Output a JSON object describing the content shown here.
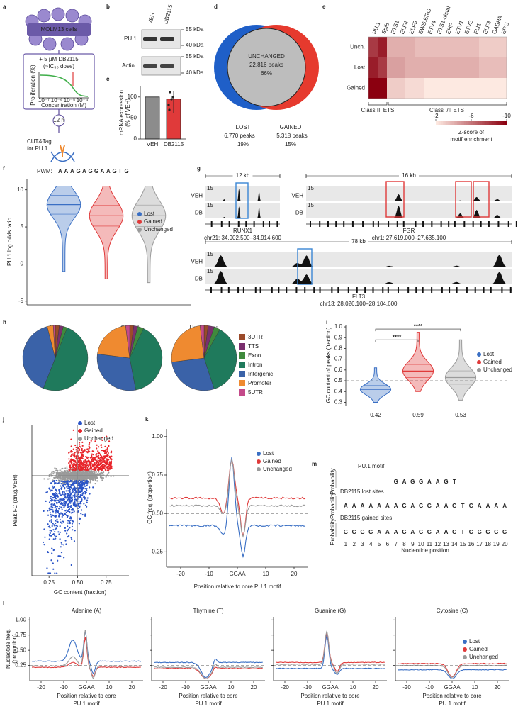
{
  "figure": {
    "a": {
      "letter": "a",
      "cells": "MOLM13 cells",
      "treatment": "+ 5 µM DB2115",
      "dose": "(~IC₅₀ dose)",
      "y_label": "Proliferation (%)",
      "x_label": "Concentration (M)",
      "x_ticks": [
        "10⁻⁷",
        "10⁻⁶",
        "10⁻⁵",
        "10⁻⁴"
      ],
      "time": "12 h",
      "assay": [
        "CUT&Tag",
        "for PU.1"
      ]
    },
    "b": {
      "letter": "b",
      "lanes": [
        "VEH",
        "DB2115"
      ],
      "rows": [
        "PU.1",
        "Actin"
      ],
      "markers": [
        "55 kDa",
        "40 kDa",
        "55 kDa",
        "40 kDa"
      ]
    },
    "c": {
      "letter": "c",
      "type": "bar",
      "y_label": [
        "mRNA expression",
        "(% of VEH)"
      ],
      "categories": [
        "VEH",
        "DB2115"
      ],
      "values": [
        100,
        95
      ],
      "colors": [
        "#8c8c8c",
        "#e03a3a"
      ],
      "ylim": [
        0,
        125
      ],
      "yticks": [
        0,
        50,
        100
      ]
    },
    "d": {
      "letter": "d",
      "center": [
        "UNCHANGED",
        "22,816 peaks",
        "66%"
      ],
      "lost": [
        "LOST",
        "6,770 peaks",
        "19%"
      ],
      "gained": [
        "GAINED",
        "5,318 peaks",
        "15%"
      ]
    },
    "e": {
      "letter": "e",
      "type": "heatmap",
      "columns": [
        "PU.1",
        "SpiB",
        "ETS1",
        "ELF4",
        "ELF5",
        "EWS:ERG",
        "ETV4",
        "ETS1-distal",
        "EHF",
        "ETV1",
        "ETV2",
        "FLI1",
        "ELF3",
        "GABPA",
        "ERG"
      ],
      "rows": [
        "Unch.",
        "Lost",
        "Gained"
      ],
      "values": [
        [
          -8,
          -9,
          -4,
          -4,
          -4,
          -3.5,
          -3.5,
          -3.5,
          -3.5,
          -3.5,
          -3.5,
          -3.5,
          -3,
          -3,
          -3
        ],
        [
          -9,
          -8,
          -4.5,
          -4.5,
          -4,
          -4,
          -4,
          -4,
          -4,
          -4,
          -4,
          -4,
          -3.5,
          -3.5,
          -3.5
        ],
        [
          -10,
          -10,
          -3,
          -3,
          -2.5,
          -2.5,
          -2,
          -2,
          -2,
          -2,
          -2,
          -2,
          -2,
          -2,
          -2
        ]
      ],
      "groups": [
        "Class III ETS",
        "Class I/II ETS"
      ],
      "clim": [
        -2,
        -10
      ],
      "cticks": [
        -2,
        -6,
        -10
      ],
      "colorbar_label": [
        "Z-score of",
        "motif enrichment"
      ]
    },
    "f": {
      "letter": "f",
      "type": "violin",
      "pwm_label": "PWM:",
      "pwm": "AAAGAGGAAGTG",
      "y_label": "PU.1 log odds ratio",
      "ylim": [
        -5.5,
        11.5
      ],
      "yticks": [
        -5,
        0,
        5,
        10
      ],
      "legend": [
        "Lost",
        "Gained",
        "Unchanged"
      ],
      "colors": [
        "#3a6fc4",
        "#e03a3a",
        "#9a9a9a"
      ],
      "medians": [
        8,
        6.5,
        6.5
      ]
    },
    "g": {
      "letter": "g",
      "regions": [
        {
          "scale": "12 kb",
          "gene": "RUNX1",
          "coords": "chr21: 34,902,500–34,914,600"
        },
        {
          "scale": "16 kb",
          "gene": "FGR",
          "coords": "chr1: 27,619,000–27,635,100"
        },
        {
          "scale": "78 kb",
          "gene": "FLT3",
          "coords": "chr13: 28,026,100–28,104,600"
        }
      ],
      "tracks": [
        "VEH",
        "DB"
      ],
      "track_max": "15"
    },
    "h": {
      "letter": "h",
      "type": "pie",
      "titles": [
        "Lost",
        "Gained",
        "Unchanged"
      ],
      "legend": [
        "3UTR",
        "TTS",
        "Exon",
        "Intron",
        "Intergenic",
        "Promoter",
        "5UTR"
      ],
      "colors": [
        "#9b4a2a",
        "#7a2f6e",
        "#3f8a3c",
        "#1f7a5c",
        "#3a62a8",
        "#ef8a30",
        "#c44a8a"
      ],
      "pies": [
        {
          "values": [
            2,
            2,
            2,
            50,
            40,
            3,
            1
          ]
        },
        {
          "values": [
            2,
            2,
            3,
            40,
            30,
            21,
            2
          ]
        },
        {
          "values": [
            2,
            3,
            3,
            37,
            28,
            25,
            2
          ]
        }
      ]
    },
    "i": {
      "letter": "i",
      "type": "violin",
      "y_label": "GC content of peaks (fraction)",
      "ylim": [
        0.27,
        1.02
      ],
      "yticks": [
        0.3,
        0.4,
        0.5,
        0.6,
        0.7,
        0.8,
        0.9,
        {
          "value": 1,
          "label": "1.0"
        }
      ],
      "medians": [
        0.42,
        0.59,
        0.53
      ],
      "value_labels": [
        "0.42",
        "0.59",
        "0.53"
      ],
      "significance": [
        "****",
        "****"
      ],
      "legend": [
        "Lost",
        "Gained",
        "Unchanged"
      ],
      "colors": [
        "#3a6fc4",
        "#e03a3a",
        "#9a9a9a"
      ]
    },
    "j": {
      "letter": "j",
      "type": "scatter",
      "y_label": "Peak FC (drug/VEH)",
      "x_label": "GC content (fraction)",
      "xlim": [
        0.1,
        0.95
      ],
      "xticks": [
        0.25,
        {
          "value": 0.5,
          "label": "0.50"
        },
        0.75
      ],
      "legend": [
        "Lost",
        "Gained",
        "Unchanged"
      ],
      "colors": [
        "#2b55c8",
        "#e8242a",
        "#9a9a9a"
      ]
    },
    "k": {
      "letter": "k",
      "type": "line",
      "y_label": "GC freq. (proportion)",
      "x_label": "Position relative to core PU.1 motif",
      "xlim": [
        -25,
        25
      ],
      "xticks": [
        -20,
        -10,
        {
          "value": 0,
          "label": "GGAA"
        },
        10,
        20
      ],
      "ylim": [
        0.15,
        1.05
      ],
      "yticks": [
        0.25,
        {
          "value": 0.5,
          "label": "0.50"
        },
        0.75,
        {
          "value": 1,
          "label": "1.00"
        }
      ],
      "legend": [
        "Lost",
        "Gained",
        "Unchanged"
      ],
      "colors": [
        "#3a6fc4",
        "#e03a3a",
        "#9a9a9a"
      ]
    },
    "l": {
      "letter": "l",
      "type": "line",
      "titles": [
        "Adenine (A)",
        "Thymine (T)",
        "Guanine (G)",
        "Cytosine (C)"
      ],
      "y_label": [
        "Nucleotide freq.",
        "(proportion)"
      ],
      "x_label": [
        "Position relative to core",
        "PU.1 motif"
      ],
      "xlim": [
        -25,
        25
      ],
      "xticks": [
        -20,
        -10,
        {
          "value": 0,
          "label": "GGAA"
        },
        10,
        20
      ],
      "ylim": [
        0,
        1.05
      ],
      "yticks": [
        0.25,
        {
          "value": 0.5,
          "label": "0.50"
        },
        0.75,
        {
          "value": 1,
          "label": "1.00"
        }
      ],
      "legend": [
        "Lost",
        "Gained",
        "Unchanged"
      ],
      "colors": [
        "#3a6fc4",
        "#e03a3a",
        "#9a9a9a"
      ]
    },
    "m": {
      "letter": "m",
      "titles": [
        "PU.1 motif",
        "DB2115 lost sites",
        "DB2115 gained sites"
      ],
      "seqs": [
        "GAGGAAGT",
        "AAAAAAAGAGGAAGTGAAAA",
        "GGGGAAAGAGGAAGTGGGGG"
      ],
      "y_label": "Probability",
      "positions": [
        1,
        2,
        3,
        4,
        5,
        6,
        7,
        8,
        9,
        10,
        11,
        12,
        13,
        14,
        15,
        16,
        17,
        18,
        19,
        20
      ],
      "x_label": "Nucleotide position"
    }
  }
}
